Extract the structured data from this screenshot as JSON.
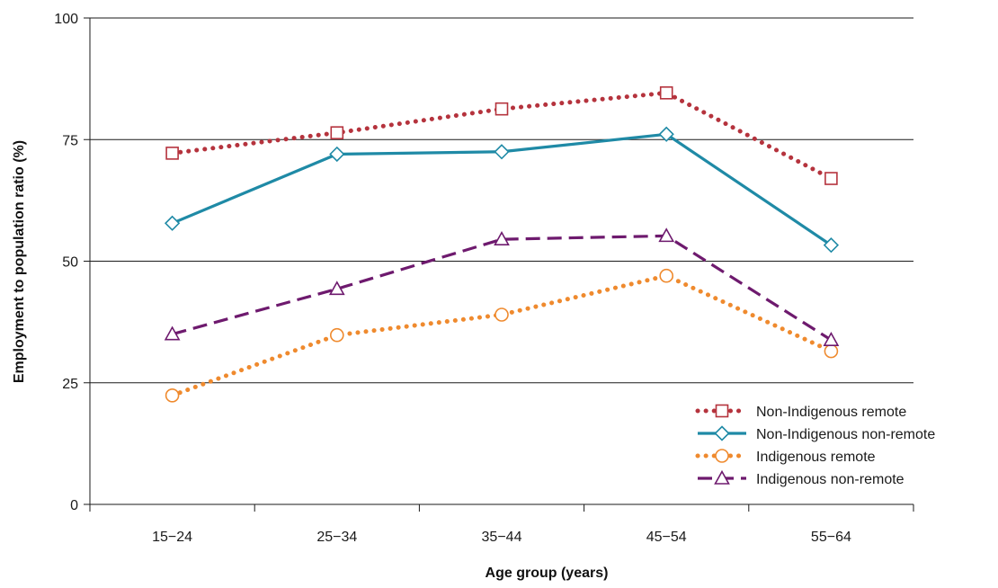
{
  "chart_data": {
    "type": "line",
    "title": "",
    "xlabel": "Age group (years)",
    "ylabel": "Employment to population ratio (%)",
    "categories": [
      "15−24",
      "25−34",
      "35−44",
      "45−54",
      "55−64"
    ],
    "ylim": [
      0,
      100
    ],
    "yticks": [
      0,
      25,
      50,
      75,
      100
    ],
    "grid": "horizontal",
    "legend_position": "bottom-right",
    "series": [
      {
        "name": "Non-Indigenous remote",
        "values": [
          72.2,
          76.4,
          81.3,
          84.6,
          67.0
        ],
        "color": "#b5333d",
        "marker": "square",
        "line": "dotted"
      },
      {
        "name": "Non-Indigenous non-remote",
        "values": [
          57.8,
          72.0,
          72.5,
          76.1,
          53.3
        ],
        "color": "#1f8aa6",
        "marker": "diamond",
        "line": "solid"
      },
      {
        "name": "Indigenous remote",
        "values": [
          22.4,
          34.8,
          39.0,
          47.0,
          31.5
        ],
        "color": "#ef8a2e",
        "marker": "circle",
        "line": "dotted"
      },
      {
        "name": "Indigenous non-remote",
        "values": [
          35.0,
          44.3,
          54.5,
          55.2,
          33.8
        ],
        "color": "#6e1a6e",
        "marker": "triangle",
        "line": "dashed"
      }
    ]
  }
}
